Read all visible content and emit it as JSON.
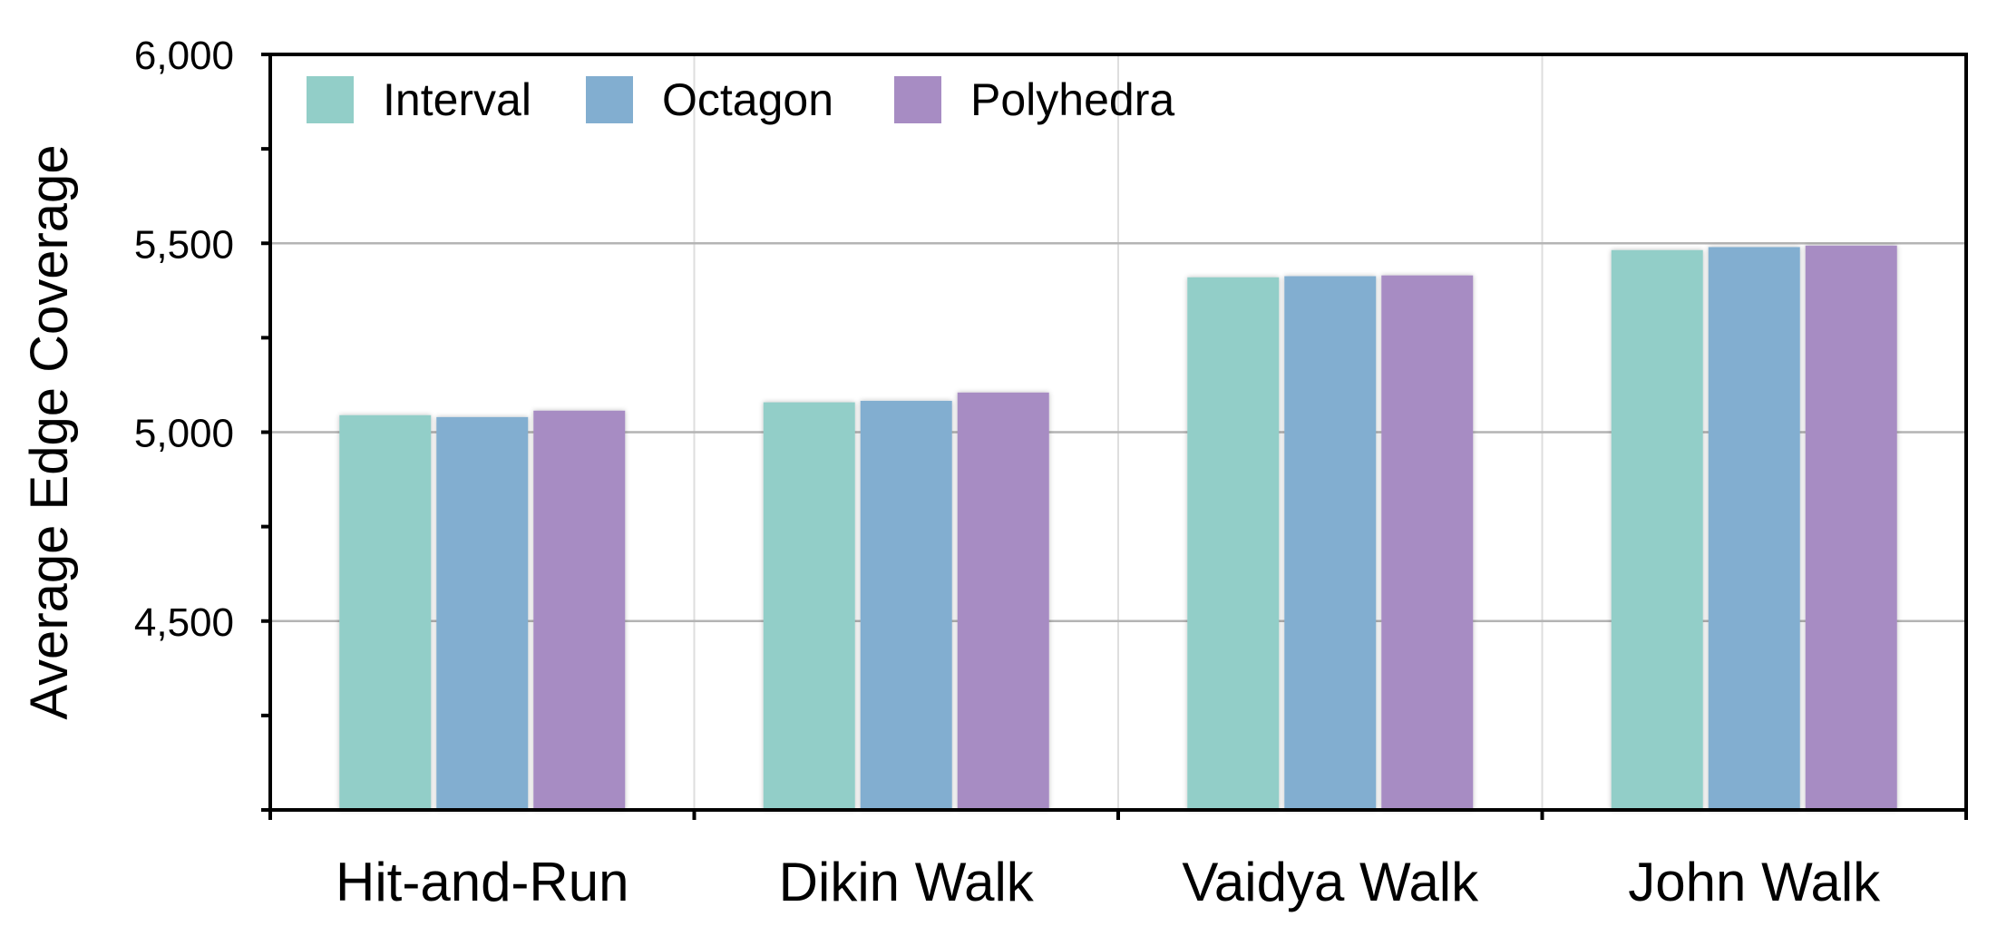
{
  "chart_data": {
    "type": "bar",
    "title": "",
    "xlabel": "",
    "ylabel": "Average Edge Coverage",
    "ylim": [
      4000,
      6000
    ],
    "yticks": [
      4500,
      5000,
      5500,
      6000
    ],
    "ytick_labels": [
      "4,500",
      "5,000",
      "5,500",
      "6,000"
    ],
    "grid": true,
    "legend_position": "top-left",
    "categories": [
      "Hit-and-Run",
      "Dikin Walk",
      "Vaidya Walk",
      "John Walk"
    ],
    "series": [
      {
        "name": "Interval",
        "color": "#92CEC8",
        "values": [
          5045,
          5079,
          5410,
          5482
        ]
      },
      {
        "name": "Octagon",
        "color": "#82AED0",
        "values": [
          5040,
          5083,
          5413,
          5490
        ]
      },
      {
        "name": "Polyhedra",
        "color": "#A78CC3",
        "values": [
          5057,
          5105,
          5415,
          5494
        ]
      }
    ]
  }
}
